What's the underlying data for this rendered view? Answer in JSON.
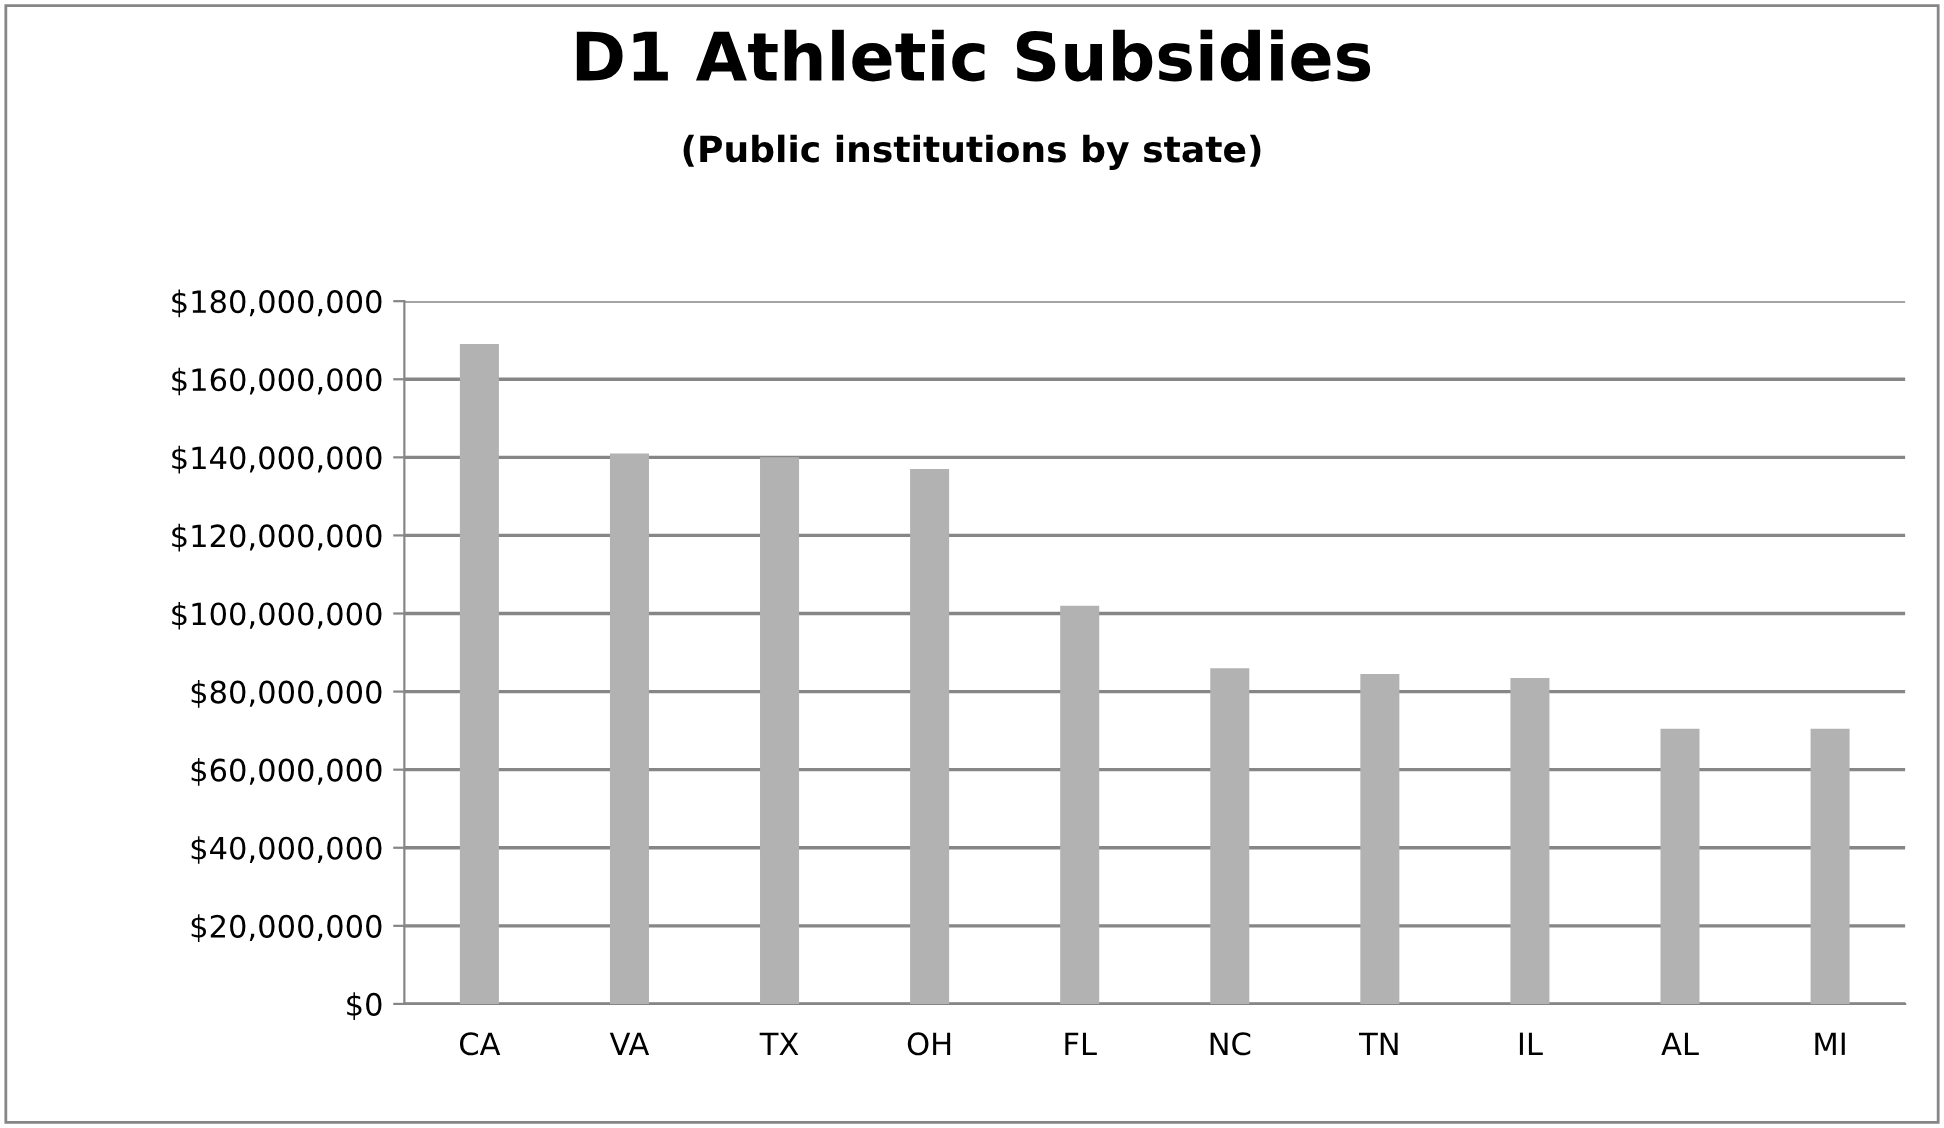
{
  "chart_data": {
    "type": "bar",
    "title": "D1 Athletic Subsidies",
    "subtitle": "(Public institutions by state)",
    "categories": [
      "CA",
      "VA",
      "TX",
      "OH",
      "FL",
      "NC",
      "TN",
      "IL",
      "AL",
      "MI"
    ],
    "series": [
      {
        "color": "#b2b2b2",
        "values": [
          169000000,
          141000000,
          140000000,
          137000000,
          102000000,
          86000000,
          84500000,
          83500000,
          70500000,
          70500000
        ]
      }
    ],
    "ylim": [
      0,
      180000000
    ],
    "yticks": [
      {
        "value": 0,
        "label": "$0"
      },
      {
        "value": 20000000,
        "label": "$20,000,000"
      },
      {
        "value": 40000000,
        "label": "$40,000,000"
      },
      {
        "value": 60000000,
        "label": "$60,000,000"
      },
      {
        "value": 80000000,
        "label": "$80,000,000"
      },
      {
        "value": 100000000,
        "label": "$100,000,000"
      },
      {
        "value": 120000000,
        "label": "$120,000,000"
      },
      {
        "value": 140000000,
        "label": "$140,000,000"
      },
      {
        "value": 160000000,
        "label": "$160,000,000"
      },
      {
        "value": 180000000,
        "label": "$180,000,000"
      }
    ],
    "grid": "y",
    "legend": false
  }
}
